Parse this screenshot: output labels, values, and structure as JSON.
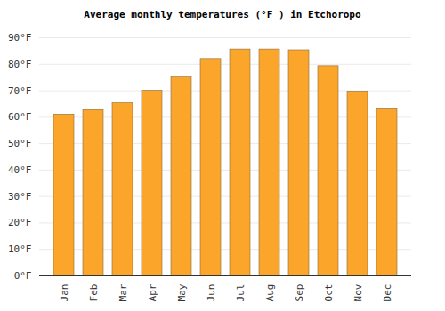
{
  "chart_data": {
    "type": "bar",
    "title": "Average monthly temperatures (°F ) in Etchoropo",
    "categories": [
      "Jan",
      "Feb",
      "Mar",
      "Apr",
      "May",
      "Jun",
      "Jul",
      "Aug",
      "Sep",
      "Oct",
      "Nov",
      "Dec"
    ],
    "values": [
      61,
      62.7,
      65.3,
      70,
      75,
      82,
      85.6,
      85.6,
      85.3,
      79.3,
      69.7,
      63
    ],
    "color": "#fba52b",
    "ylim": [
      0,
      90
    ],
    "yticks": [
      {
        "value": 0,
        "label": "0°F"
      },
      {
        "value": 10,
        "label": "10°F"
      },
      {
        "value": 20,
        "label": "20°F"
      },
      {
        "value": 30,
        "label": "30°F"
      },
      {
        "value": 40,
        "label": "40°F"
      },
      {
        "value": 50,
        "label": "50°F"
      },
      {
        "value": 60,
        "label": "60°F"
      },
      {
        "value": 70,
        "label": "70°F"
      },
      {
        "value": 80,
        "label": "80°F"
      },
      {
        "value": 90,
        "label": "90°F"
      }
    ],
    "grid": true
  }
}
